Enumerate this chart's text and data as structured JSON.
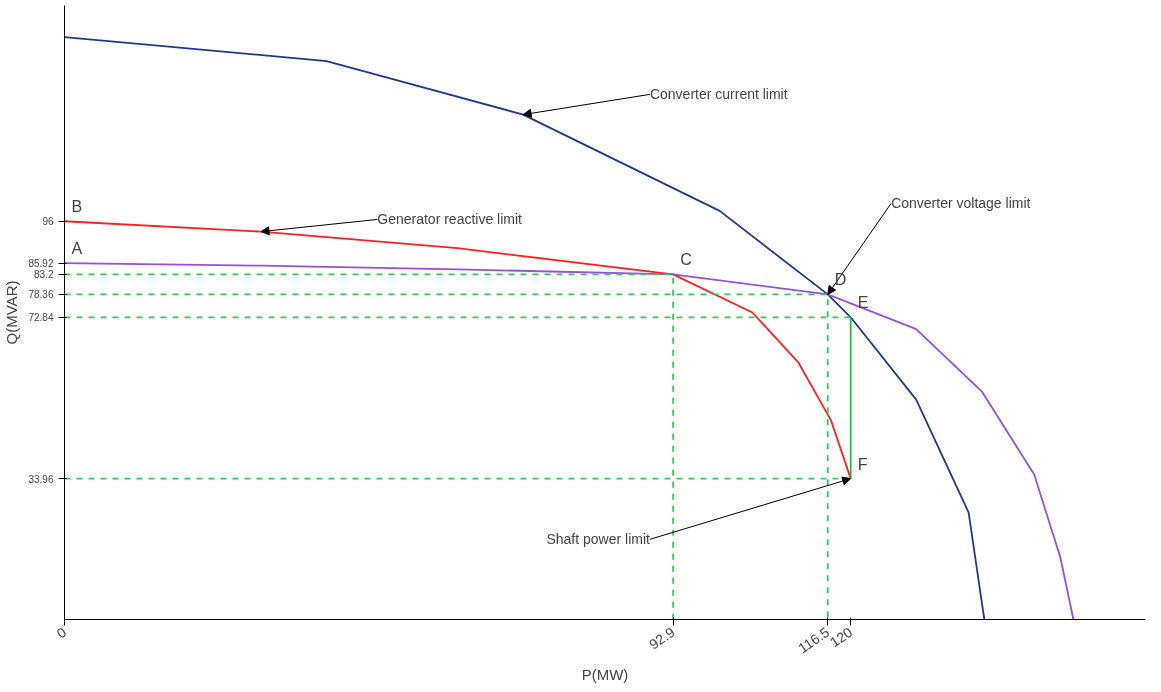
{
  "chart_data": {
    "type": "line",
    "xlabel": "P(MW)",
    "ylabel": "Q(MVAR)",
    "xlim": [
      0,
      165
    ],
    "ylim": [
      0,
      148
    ],
    "xticks": [
      0,
      92.9,
      116.5,
      120
    ],
    "yticks": [
      33.96,
      72.84,
      78.36,
      83.2,
      85.92,
      96
    ],
    "grid": false,
    "marker": "none",
    "series": [
      {
        "name": "Converter current limit",
        "color": "#1f3a8a",
        "line_style": "solid",
        "x": [
          0,
          40,
          70,
          100,
          116.5,
          120,
          130,
          138,
          140.4
        ],
        "values": [
          140.4,
          134.6,
          121.7,
          98.5,
          78.36,
          72.84,
          53,
          25.8,
          0
        ]
      },
      {
        "name": "Generator  reactive limit",
        "color": "#ff2020",
        "line_style": "solid",
        "x": [
          0,
          30,
          60,
          92.9,
          105,
          112,
          117,
          120
        ],
        "values": [
          96,
          93.5,
          89.5,
          83.2,
          74,
          62,
          48,
          33.96
        ]
      },
      {
        "name": "Converter voltage limit",
        "color": "#9b4fd6",
        "line_style": "solid",
        "x": [
          0,
          30,
          60,
          92.9,
          116.5,
          130,
          140,
          148,
          152,
          154
        ],
        "values": [
          85.92,
          85.3,
          84.4,
          83.2,
          78.36,
          70,
          55,
          35,
          15,
          0
        ]
      },
      {
        "name": "Shaft power limit",
        "color": "#22bb44",
        "line_style": "solid",
        "x": [
          120,
          120
        ],
        "values": [
          72.84,
          33.96
        ]
      },
      {
        "color": "#33cc55",
        "line_style": "dashed",
        "x": [
          0,
          92.9,
          92.9
        ],
        "values": [
          83.2,
          83.2,
          0
        ]
      },
      {
        "color": "#33cc55",
        "line_style": "dashed",
        "x": [
          0,
          116.5,
          116.5
        ],
        "values": [
          78.36,
          78.36,
          0
        ]
      },
      {
        "color": "#33cc55",
        "line_style": "dashed",
        "x": [
          0,
          120
        ],
        "values": [
          72.84,
          72.84
        ]
      },
      {
        "color": "#33cc55",
        "line_style": "dashed",
        "x": [
          0,
          120
        ],
        "values": [
          33.96,
          33.96
        ]
      }
    ],
    "annotations": [
      {
        "text": "A",
        "x": 0,
        "y": 85.92
      },
      {
        "text": "B",
        "x": 0,
        "y": 96
      },
      {
        "text": "C",
        "x": 92.9,
        "y": 83.2
      },
      {
        "text": "D",
        "x": 116.5,
        "y": 78.36
      },
      {
        "text": "E",
        "x": 120,
        "y": 72.84
      },
      {
        "text": "F",
        "x": 120,
        "y": 33.96
      }
    ]
  }
}
